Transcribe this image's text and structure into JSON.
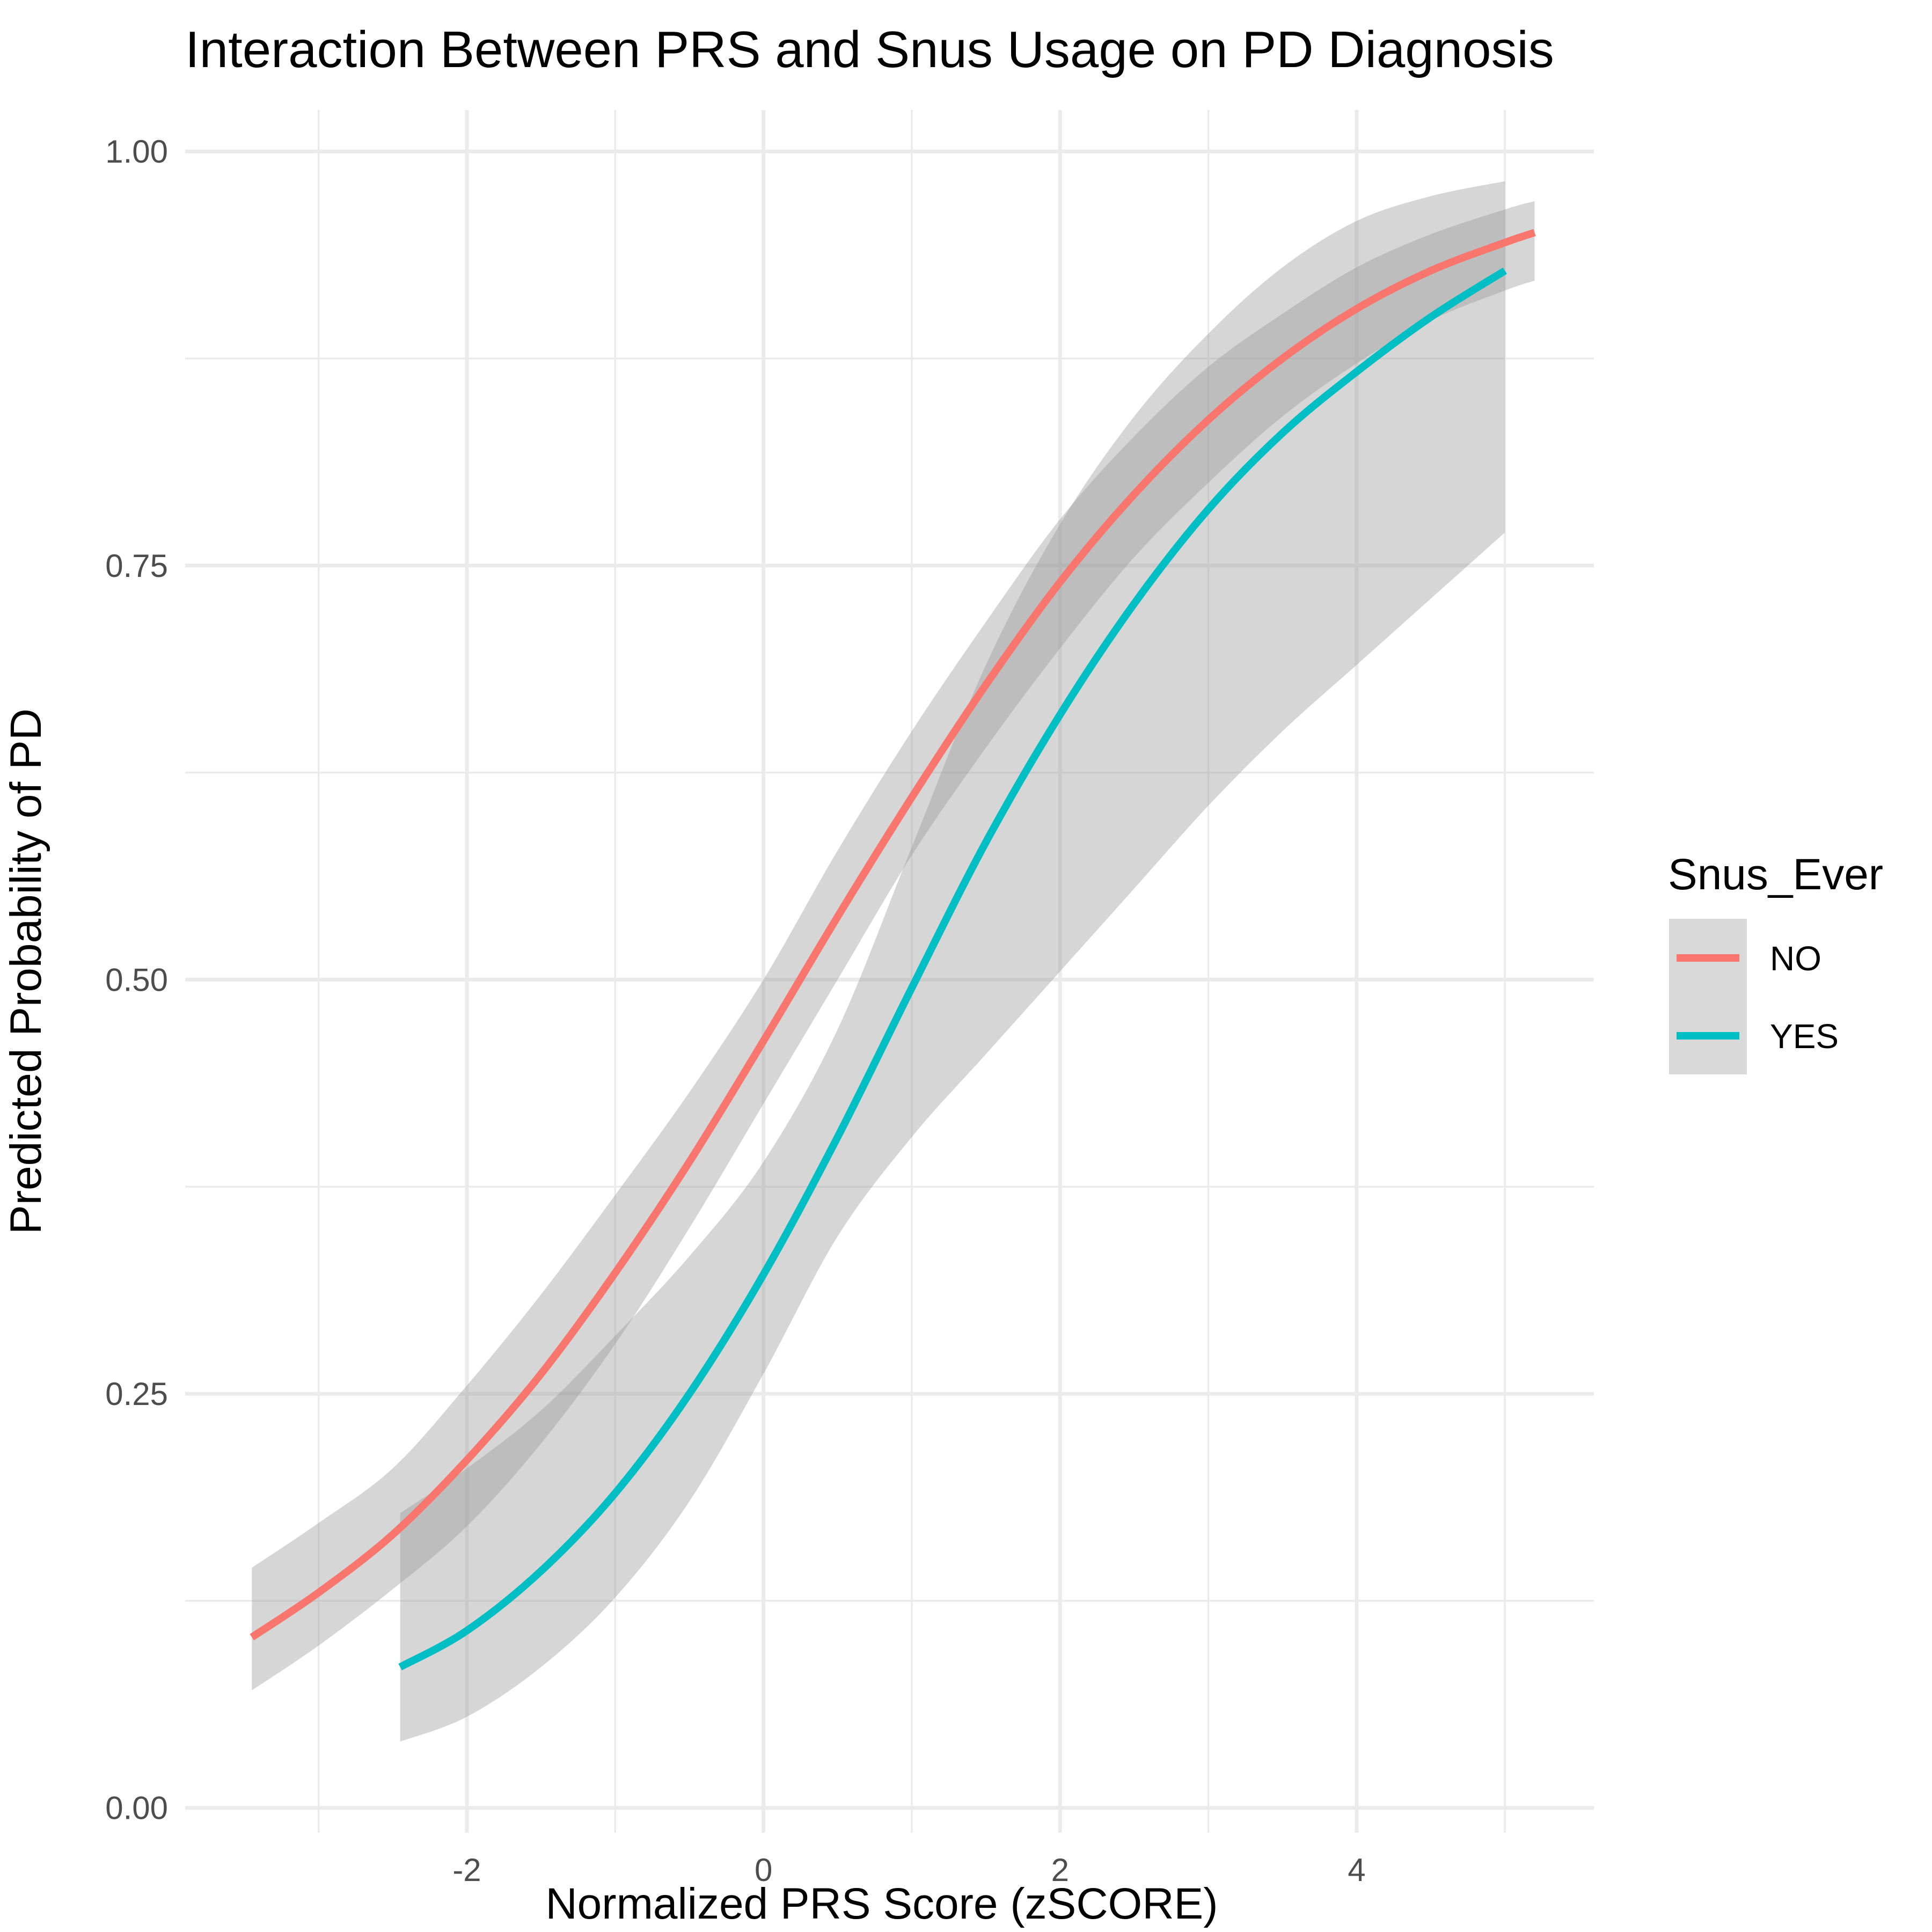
{
  "chart_data": {
    "type": "line",
    "title": "Interaction Between PRS and Snus Usage  on PD Diagnosis",
    "xlabel": "Normalized PRS Score (zSCORE)",
    "ylabel": "Predicted Probability of PD",
    "xlim": [
      -3.9,
      5.6
    ],
    "ylim": [
      -0.015,
      1.025
    ],
    "x_ticks": [
      -2,
      0,
      2,
      4
    ],
    "x_tick_labels": [
      "-2",
      "0",
      "2",
      "4"
    ],
    "y_ticks": [
      0,
      0.25,
      0.5,
      0.75,
      1
    ],
    "y_tick_labels": [
      "0.00",
      "0.25",
      "0.50",
      "0.75",
      "1.00"
    ],
    "grid": true,
    "legend": {
      "title": "Snus_Ever",
      "placement": "right",
      "entries": [
        "NO",
        "YES"
      ]
    },
    "series": [
      {
        "name": "NO",
        "color": "#F8766D",
        "band_color": "#999999",
        "x": [
          -3.45,
          -3.0,
          -2.5,
          -2.0,
          -1.5,
          -1.0,
          -0.5,
          0.0,
          0.5,
          1.0,
          1.5,
          2.0,
          2.5,
          3.0,
          3.5,
          4.0,
          4.5,
          5.0,
          5.2
        ],
        "y": [
          0.103,
          0.13,
          0.165,
          0.21,
          0.262,
          0.323,
          0.39,
          0.463,
          0.538,
          0.61,
          0.678,
          0.74,
          0.793,
          0.838,
          0.875,
          0.905,
          0.928,
          0.945,
          0.951
        ],
        "lower": [
          0.071,
          0.098,
          0.132,
          0.17,
          0.22,
          0.28,
          0.35,
          0.425,
          0.5,
          0.575,
          0.64,
          0.7,
          0.755,
          0.8,
          0.84,
          0.872,
          0.898,
          0.916,
          0.922
        ],
        "upper": [
          0.145,
          0.172,
          0.205,
          0.255,
          0.31,
          0.37,
          0.432,
          0.5,
          0.578,
          0.65,
          0.716,
          0.778,
          0.828,
          0.87,
          0.902,
          0.93,
          0.95,
          0.965,
          0.97
        ]
      },
      {
        "name": "YES",
        "color": "#00BFC4",
        "band_color": "#999999",
        "x": [
          -2.45,
          -2.0,
          -1.5,
          -1.0,
          -0.5,
          0.0,
          0.5,
          1.0,
          1.5,
          2.0,
          2.5,
          3.0,
          3.5,
          4.0,
          4.5,
          5.0
        ],
        "y": [
          0.085,
          0.107,
          0.143,
          0.19,
          0.25,
          0.322,
          0.405,
          0.495,
          0.583,
          0.66,
          0.727,
          0.784,
          0.83,
          0.867,
          0.9,
          0.928
        ],
        "lower": [
          0.04,
          0.055,
          0.085,
          0.127,
          0.185,
          0.262,
          0.345,
          0.405,
          0.455,
          0.505,
          0.555,
          0.605,
          0.65,
          0.69,
          0.73,
          0.77
        ],
        "upper": [
          0.178,
          0.205,
          0.24,
          0.285,
          0.333,
          0.39,
          0.47,
          0.58,
          0.69,
          0.775,
          0.84,
          0.89,
          0.93,
          0.958,
          0.973,
          0.982
        ]
      }
    ]
  }
}
